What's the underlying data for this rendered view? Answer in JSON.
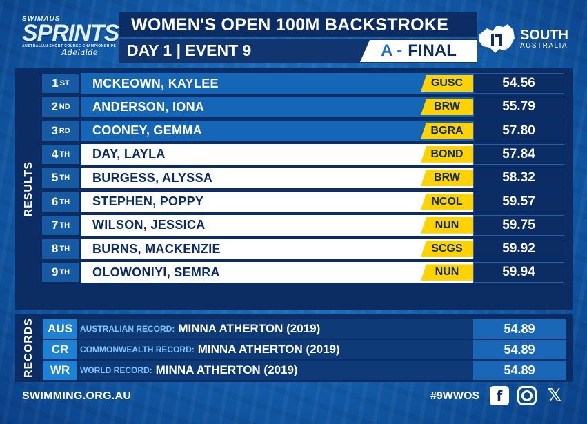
{
  "header": {
    "logo": {
      "brand": "SWIMAUS",
      "word": "SPRINTS",
      "sub": "AUSTRALIAN SHORT COURSE CHAMPIONSHIPS",
      "city": "Adelaide"
    },
    "title": "WOMEN'S OPEN 100M BACKSTROKE",
    "day_event": "DAY 1 | EVENT 9",
    "final_letter": "A -",
    "final_label": "FINAL",
    "sponsor": {
      "line1": "SOUTH",
      "line2": "AUSTRALIA"
    }
  },
  "results_label": "RESULTS",
  "results": [
    {
      "place": "1",
      "suffix": "ST",
      "name": "MCKEOWN, KAYLEE",
      "club": "GUSC",
      "time": "54.56"
    },
    {
      "place": "2",
      "suffix": "ND",
      "name": "ANDERSON, IONA",
      "club": "BRW",
      "time": "55.79"
    },
    {
      "place": "3",
      "suffix": "RD",
      "name": "COONEY, GEMMA",
      "club": "BGRA",
      "time": "57.80"
    },
    {
      "place": "4",
      "suffix": "TH",
      "name": "DAY, LAYLA",
      "club": "BOND",
      "time": "57.84"
    },
    {
      "place": "5",
      "suffix": "TH",
      "name": "BURGESS, ALYSSA",
      "club": "BRW",
      "time": "58.32"
    },
    {
      "place": "6",
      "suffix": "TH",
      "name": "STEPHEN, POPPY",
      "club": "NCOL",
      "time": "59.57"
    },
    {
      "place": "7",
      "suffix": "TH",
      "name": "WILSON, JESSICA",
      "club": "NUN",
      "time": "59.75"
    },
    {
      "place": "8",
      "suffix": "TH",
      "name": "BURNS, MACKENZIE",
      "club": "SCGS",
      "time": "59.92"
    },
    {
      "place": "9",
      "suffix": "TH",
      "name": "OLOWONIYI, SEMRA",
      "club": "NUN",
      "time": "59.94"
    }
  ],
  "records_label": "RECORDS",
  "records": [
    {
      "code": "AUS",
      "type": "AUSTRALIAN RECORD:",
      "holder": "MINNA ATHERTON (2019)",
      "time": "54.89"
    },
    {
      "code": "CR",
      "type": "COMMONWEALTH RECORD:",
      "holder": "MINNA ATHERTON (2019)",
      "time": "54.89"
    },
    {
      "code": "WR",
      "type": "WORLD RECORD:",
      "holder": "MINNA ATHERTON (2019)",
      "time": "54.89"
    }
  ],
  "footer": {
    "website": "SWIMMING.ORG.AU",
    "hashtag": "#9WWOS",
    "social_icons": [
      "facebook-icon",
      "instagram-icon",
      "x-icon"
    ]
  },
  "colors": {
    "navy": "#0c2d63",
    "accent_blue": "#1566b6",
    "club_yellow": "#ffd200"
  }
}
